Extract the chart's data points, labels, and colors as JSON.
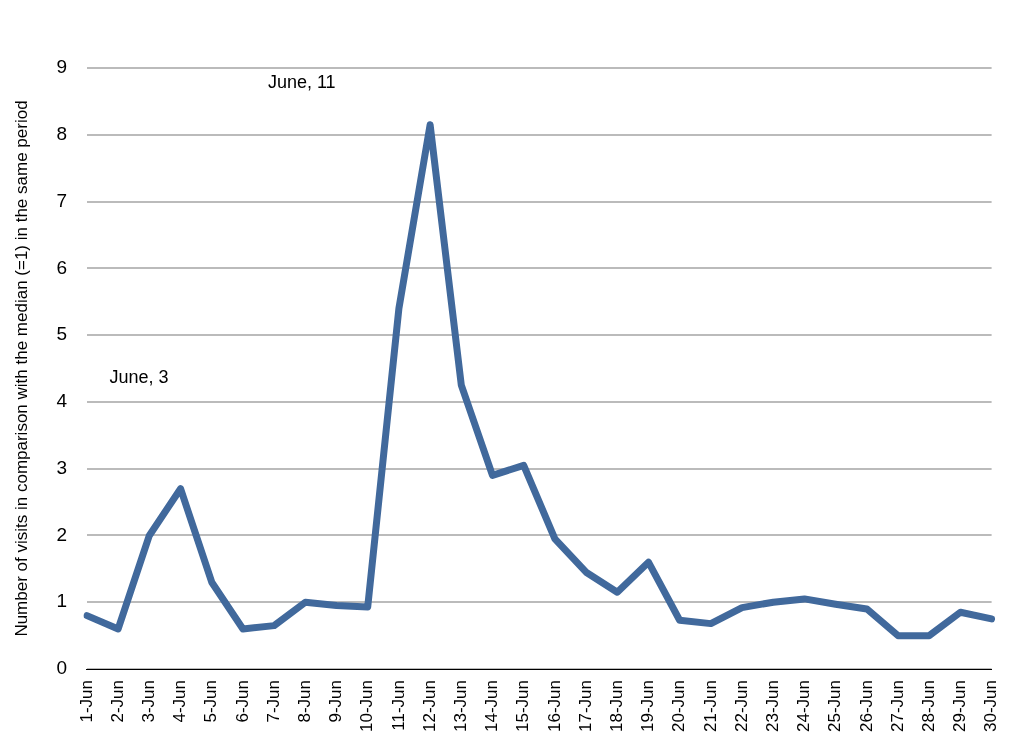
{
  "chart_data": {
    "type": "line",
    "ylabel": "Number of visits in comparison with the median (=1) in the same period",
    "categories": [
      "1-Jun",
      "2-Jun",
      "3-Jun",
      "4-Jun",
      "5-Jun",
      "6-Jun",
      "7-Jun",
      "8-Jun",
      "9-Jun",
      "10-Jun",
      "11-Jun",
      "12-Jun",
      "13-Jun",
      "14-Jun",
      "15-Jun",
      "16-Jun",
      "17-Jun",
      "18-Jun",
      "19-Jun",
      "20-Jun",
      "21-Jun",
      "22-Jun",
      "23-Jun",
      "24-Jun",
      "25-Jun",
      "26-Jun",
      "27-Jun",
      "28-Jun",
      "29-Jun",
      "30-Jun"
    ],
    "series": [
      {
        "color": "#41699c",
        "values": [
          0.8,
          0.6,
          2.0,
          2.7,
          1.3,
          0.6,
          0.65,
          1.0,
          0.95,
          0.93,
          5.4,
          8.15,
          4.25,
          2.9,
          3.05,
          1.95,
          1.45,
          1.15,
          1.6,
          0.73,
          0.68,
          0.92,
          1.0,
          1.05,
          0.97,
          0.9,
          0.5,
          0.5,
          0.85,
          0.75
        ]
      }
    ],
    "ylim": [
      0,
      9
    ],
    "yticks": [
      0,
      1,
      2,
      3,
      4,
      5,
      6,
      7,
      8,
      9
    ],
    "grid": "y",
    "legend": false,
    "marker": "none",
    "line_style": "solid",
    "annotations": [
      "June, 3",
      "June, 11"
    ]
  }
}
